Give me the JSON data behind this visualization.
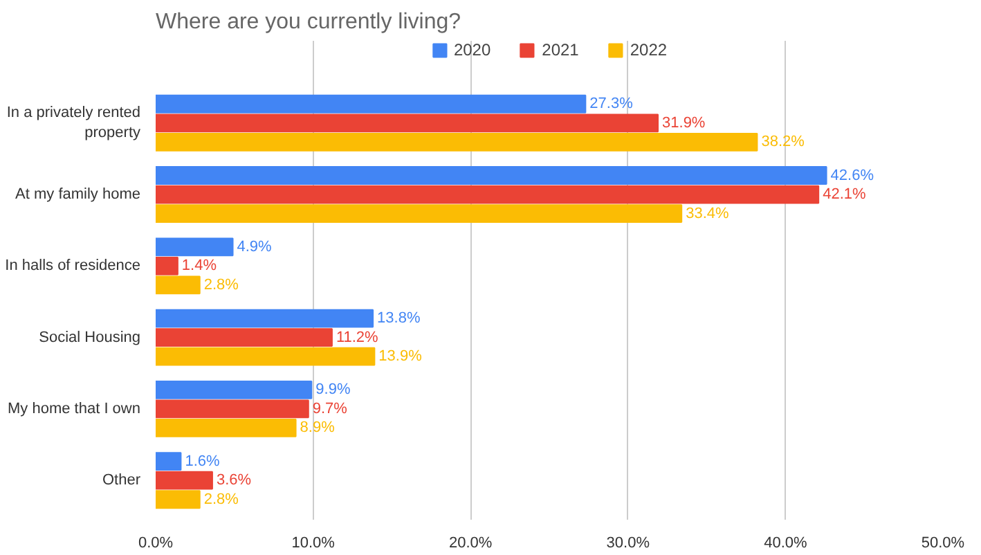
{
  "chart_data": {
    "type": "bar",
    "orientation": "horizontal",
    "title": "Where are you currently living?",
    "categories": [
      "In a privately rented property",
      "At my family home",
      "In halls of residence",
      "Social Housing",
      "My home that I own",
      "Other"
    ],
    "series": [
      {
        "name": "2020",
        "color": "#4285f4",
        "values": [
          27.3,
          42.6,
          4.9,
          13.8,
          9.9,
          1.6
        ],
        "value_labels": [
          "27.3%",
          "42.6%",
          "4.9%",
          "13.8%",
          "9.9%",
          "1.6%"
        ]
      },
      {
        "name": "2021",
        "color": "#ea4335",
        "values": [
          31.9,
          42.1,
          1.4,
          11.2,
          9.7,
          3.6
        ],
        "value_labels": [
          "31.9%",
          "42.1%",
          "1.4%",
          "11.2%",
          "9.7%",
          "3.6%"
        ]
      },
      {
        "name": "2022",
        "color": "#fbbc04",
        "values": [
          38.2,
          33.4,
          2.8,
          13.9,
          8.9,
          2.8
        ],
        "value_labels": [
          "38.2%",
          "33.4%",
          "2.8%",
          "13.9%",
          "8.9%",
          "2.8%"
        ]
      }
    ],
    "xlim": [
      0,
      50
    ],
    "xticks": [
      {
        "value": 0,
        "label": "0.0%"
      },
      {
        "value": 10,
        "label": "10.0%"
      },
      {
        "value": 20,
        "label": "20.0%"
      },
      {
        "value": 30,
        "label": "30.0%"
      },
      {
        "value": 40,
        "label": "40.0%"
      },
      {
        "value": 50,
        "label": "50.0%"
      }
    ],
    "grid": "x",
    "legend": "top"
  }
}
